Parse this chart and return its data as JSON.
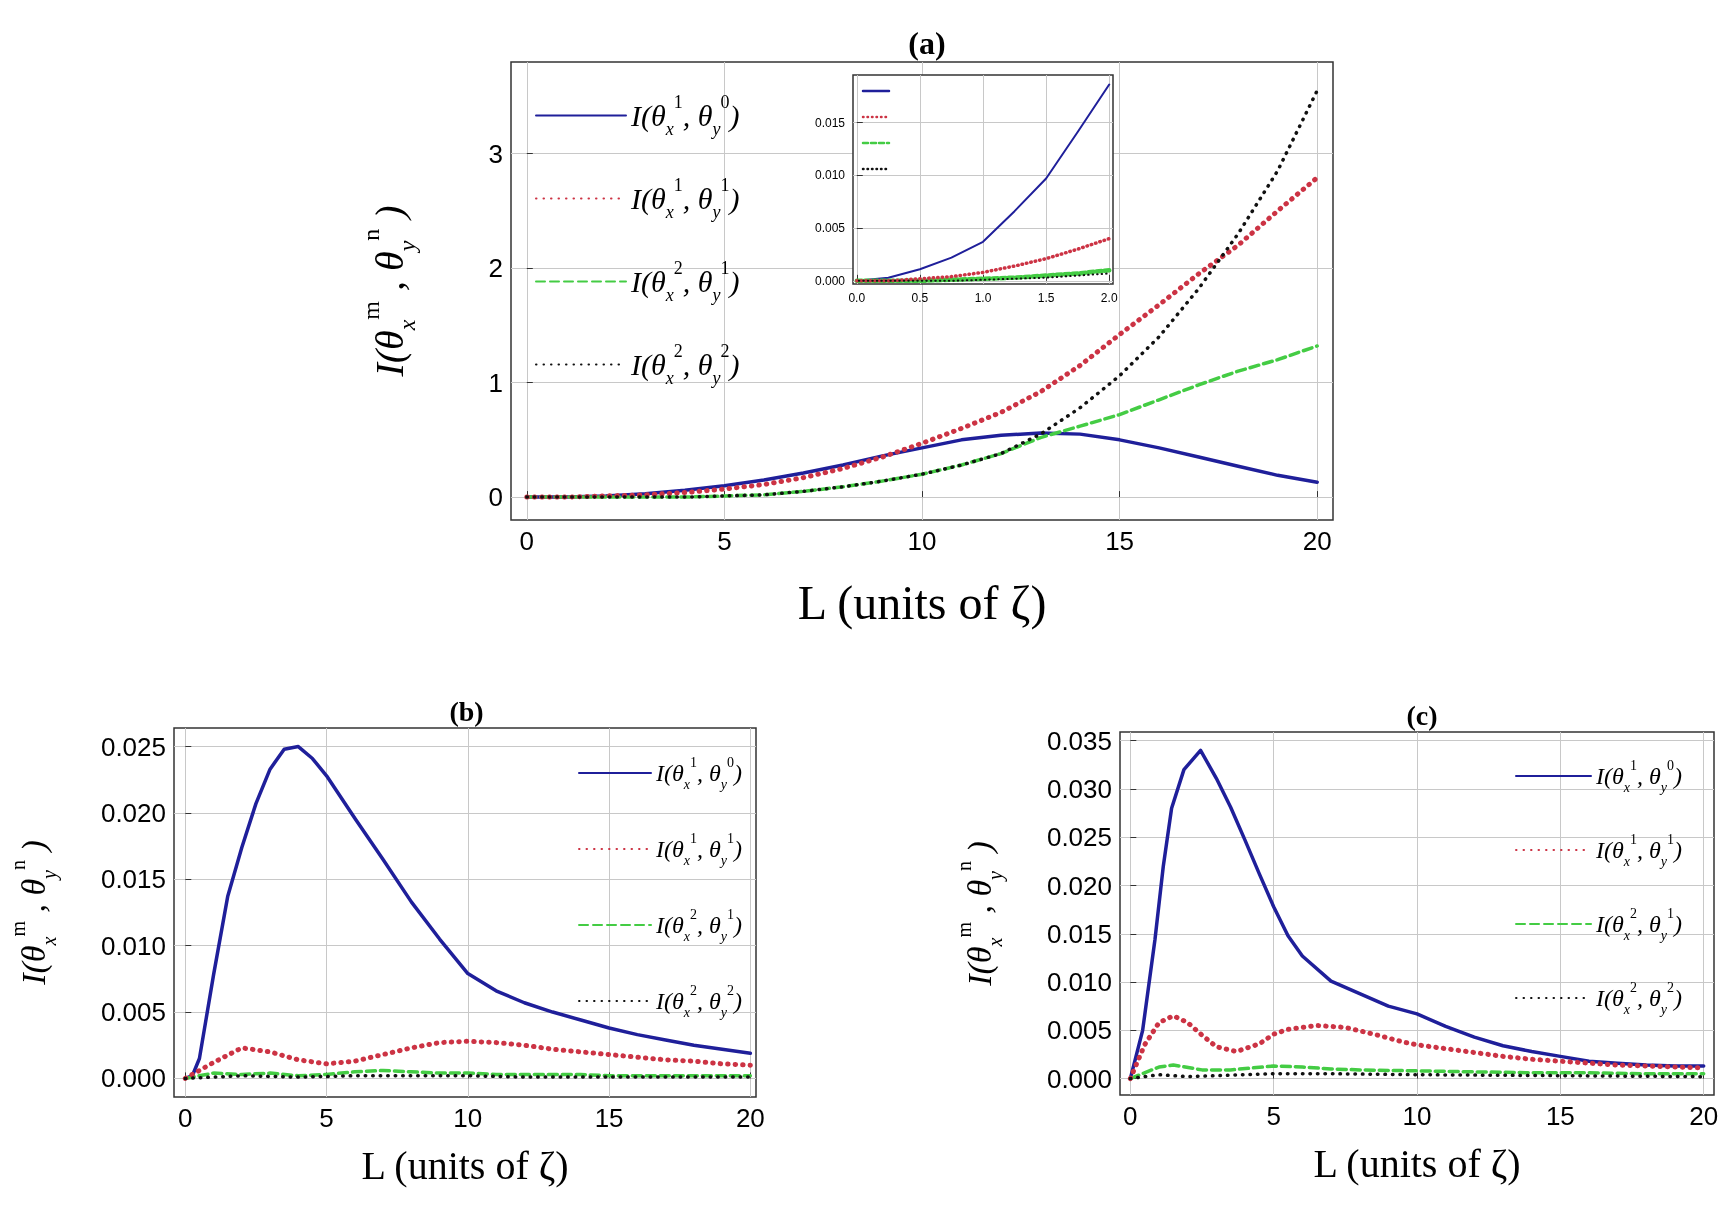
{
  "chart_data": [
    {
      "type": "line",
      "title": "(a)",
      "xlabel": "L (units of ζ)",
      "ylabel": "I(θ$_{x}$$^{m}$ , θ$_{y}$$^{n}$ )",
      "xlim": [
        -0.4,
        20.4
      ],
      "ylim": [
        -0.2,
        3.8
      ],
      "xticks": [
        0,
        5,
        10,
        15,
        20
      ],
      "yticks": [
        0,
        1,
        2,
        3
      ],
      "grid": true,
      "legend": "top left",
      "marker": "none",
      "series": [
        {
          "name": "I(θ$_{x}$$^{1}$, θ$_{y}$$^{0}$)",
          "color": "#1f1f9a",
          "line_style": "solid",
          "x": [
            0,
            1,
            2,
            3,
            4,
            5,
            6,
            7,
            8,
            9,
            10,
            11,
            12,
            13,
            14,
            15,
            16,
            17,
            18,
            19,
            20
          ],
          "values": [
            0,
            0,
            0.01,
            0.03,
            0.06,
            0.1,
            0.15,
            0.21,
            0.28,
            0.36,
            0.43,
            0.5,
            0.54,
            0.56,
            0.55,
            0.5,
            0.43,
            0.35,
            0.27,
            0.19,
            0.13
          ]
        },
        {
          "name": "I(θ$_{x}$$^{1}$, θ$_{y}$$^{1}$)",
          "color": "#cc3344",
          "line_style": "dotted",
          "x": [
            0,
            1,
            2,
            3,
            4,
            5,
            6,
            7,
            8,
            9,
            10,
            11,
            12,
            13,
            14,
            15,
            16,
            17,
            18,
            19,
            20
          ],
          "values": [
            0,
            0,
            0.01,
            0.02,
            0.04,
            0.07,
            0.11,
            0.17,
            0.25,
            0.35,
            0.47,
            0.6,
            0.74,
            0.92,
            1.15,
            1.42,
            1.68,
            1.95,
            2.2,
            2.5,
            2.79
          ]
        },
        {
          "name": "I(θ$_{x}$$^{2}$, θ$_{y}$$^{1}$)",
          "color": "#44cc44",
          "line_style": "dashed",
          "x": [
            0,
            1,
            2,
            3,
            4,
            5,
            6,
            7,
            8,
            9,
            10,
            11,
            12,
            13,
            14,
            15,
            16,
            17,
            18,
            19,
            20
          ],
          "values": [
            0,
            0,
            0,
            0,
            0,
            0.01,
            0.02,
            0.05,
            0.09,
            0.14,
            0.2,
            0.28,
            0.38,
            0.52,
            0.62,
            0.72,
            0.85,
            0.98,
            1.1,
            1.2,
            1.32
          ]
        },
        {
          "name": "I(θ$_{x}$$^{2}$, θ$_{y}$$^{2}$)",
          "color": "#111111",
          "line_style": "dotted",
          "x": [
            0,
            1,
            2,
            3,
            4,
            5,
            6,
            7,
            8,
            9,
            10,
            11,
            12,
            13,
            14,
            15,
            16,
            17,
            18,
            19,
            20
          ],
          "values": [
            0,
            0,
            0,
            0,
            0,
            0.01,
            0.02,
            0.05,
            0.09,
            0.14,
            0.2,
            0.28,
            0.38,
            0.55,
            0.78,
            1.06,
            1.4,
            1.82,
            2.3,
            2.85,
            3.55
          ]
        }
      ]
    },
    {
      "type": "line",
      "xlim": [
        -0.03,
        2.03
      ],
      "ylim": [
        -0.0003,
        0.0195
      ],
      "xticks": [
        {
          "value": 0,
          "label": "0.0"
        },
        {
          "value": 0.5,
          "label": "0.5"
        },
        {
          "value": 1,
          "label": "1.0"
        },
        {
          "value": 1.5,
          "label": "1.5"
        },
        {
          "value": 2,
          "label": "2.0"
        }
      ],
      "yticks": [
        {
          "value": 0,
          "label": "0.000"
        },
        {
          "value": 0.005,
          "label": "0.005"
        },
        {
          "value": 0.01,
          "label": "0.010"
        },
        {
          "value": 0.015,
          "label": "0.015"
        }
      ],
      "grid": true,
      "legend": "top left",
      "marker": "none",
      "series": [
        {
          "color": "#1f1f9a",
          "line_style": "solid",
          "x": [
            0,
            0.25,
            0.5,
            0.75,
            1,
            1.25,
            1.5,
            1.75,
            2
          ],
          "values": [
            0,
            0.0003,
            0.0011,
            0.0022,
            0.0037,
            0.0066,
            0.0097,
            0.0141,
            0.0186
          ]
        },
        {
          "color": "#cc3344",
          "line_style": "dotted",
          "x": [
            0,
            0.25,
            0.5,
            0.75,
            1,
            1.25,
            1.5,
            1.75,
            2
          ],
          "values": [
            0,
            0,
            0.0002,
            0.0004,
            0.0008,
            0.0014,
            0.0021,
            0.003,
            0.004
          ]
        },
        {
          "color": "#44cc44",
          "line_style": "dashed",
          "x": [
            0,
            0.25,
            0.5,
            0.75,
            1,
            1.25,
            1.5,
            1.75,
            2
          ],
          "values": [
            0,
            0,
            0,
            0.0001,
            0.0002,
            0.0003,
            0.0005,
            0.0007,
            0.001
          ]
        },
        {
          "color": "#111111",
          "line_style": "dotted",
          "x": [
            0,
            0.25,
            0.5,
            0.75,
            1,
            1.25,
            1.5,
            1.75,
            2
          ],
          "values": [
            0,
            0,
            0,
            0,
            0.0001,
            0.0002,
            0.0003,
            0.0005,
            0.0007
          ]
        }
      ]
    },
    {
      "type": "line",
      "title": "(b)",
      "xlabel": "L (units of ζ)",
      "ylabel": "I(θ$_{x}$$^{m}$ , θ$_{y}$$^{n}$ )",
      "xlim": [
        -0.4,
        20.2
      ],
      "ylim": [
        -0.0014,
        0.0264
      ],
      "xticks": [
        0,
        5,
        10,
        15,
        20
      ],
      "yticks": [
        {
          "value": 0,
          "label": "0.000"
        },
        {
          "value": 0.005,
          "label": "0.005"
        },
        {
          "value": 0.01,
          "label": "0.010"
        },
        {
          "value": 0.015,
          "label": "0.015"
        },
        {
          "value": 0.02,
          "label": "0.020"
        },
        {
          "value": 0.025,
          "label": "0.025"
        }
      ],
      "grid": true,
      "legend": "top right",
      "marker": "none",
      "series": [
        {
          "name": "I(θ$_{x}$$^{1}$, θ$_{y}$$^{0}$)",
          "color": "#1f1f9a",
          "line_style": "solid",
          "x": [
            0,
            0.25,
            0.5,
            1,
            1.5,
            2,
            2.5,
            3,
            3.5,
            4,
            4.5,
            5,
            6,
            7,
            8,
            9,
            10,
            11,
            12,
            13,
            14,
            15,
            16,
            17,
            18,
            19,
            20
          ],
          "values": [
            0,
            0.0002,
            0.0015,
            0.0078,
            0.0137,
            0.0174,
            0.0207,
            0.0233,
            0.0248,
            0.025,
            0.0241,
            0.0228,
            0.0196,
            0.0165,
            0.0133,
            0.0105,
            0.0079,
            0.0066,
            0.0057,
            0.005,
            0.0044,
            0.0038,
            0.0033,
            0.0029,
            0.0025,
            0.0022,
            0.0019
          ]
        },
        {
          "name": "I(θ$_{x}$$^{1}$, θ$_{y}$$^{1}$)",
          "color": "#cc3344",
          "line_style": "dotted",
          "x": [
            0,
            1,
            2,
            3,
            4,
            5,
            6,
            7,
            8,
            9,
            10,
            11,
            12,
            13,
            14,
            15,
            16,
            17,
            18,
            19,
            20
          ],
          "values": [
            0,
            0.0012,
            0.0023,
            0.002,
            0.0014,
            0.0011,
            0.0013,
            0.0018,
            0.0023,
            0.0027,
            0.0028,
            0.0027,
            0.0025,
            0.0022,
            0.002,
            0.0018,
            0.0016,
            0.0014,
            0.0013,
            0.0011,
            0.001
          ]
        },
        {
          "name": "I(θ$_{x}$$^{2}$, θ$_{y}$$^{1}$)",
          "color": "#44cc44",
          "line_style": "dashed",
          "x": [
            0,
            1,
            2,
            3,
            4,
            5,
            6,
            7,
            8,
            9,
            10,
            11,
            12,
            13,
            14,
            15,
            16,
            17,
            18,
            19,
            20
          ],
          "values": [
            0,
            0.0004,
            0.0003,
            0.0004,
            0.0002,
            0.0003,
            0.0005,
            0.0006,
            0.0005,
            0.0004,
            0.0004,
            0.0003,
            0.0003,
            0.0003,
            0.0003,
            0.0002,
            0.0002,
            0.0002,
            0.0002,
            0.0002,
            0.0002
          ]
        },
        {
          "name": "I(θ$_{x}$$^{2}$, θ$_{y}$$^{2}$)",
          "color": "#111111",
          "line_style": "dotted",
          "x": [
            0,
            1,
            2,
            4,
            6,
            8,
            10,
            12,
            14,
            16,
            18,
            20
          ],
          "values": [
            0,
            0.0001,
            0.0002,
            0.0001,
            0.0002,
            0.0002,
            0.0002,
            0.0001,
            0.0001,
            0.0001,
            0.0001,
            0.0001
          ]
        }
      ]
    },
    {
      "type": "line",
      "title": "(c)",
      "xlabel": "L (units of ζ)",
      "ylabel": "I(θ$_{x}$$^{m}$ , θ$_{y}$$^{n}$ )",
      "xlim": [
        -0.36,
        20.36
      ],
      "ylim": [
        -0.0017,
        0.0359
      ],
      "xticks": [
        0,
        5,
        10,
        15,
        20
      ],
      "yticks": [
        {
          "value": 0,
          "label": "0.000"
        },
        {
          "value": 0.005,
          "label": "0.005"
        },
        {
          "value": 0.01,
          "label": "0.010"
        },
        {
          "value": 0.015,
          "label": "0.015"
        },
        {
          "value": 0.02,
          "label": "0.020"
        },
        {
          "value": 0.025,
          "label": "0.025"
        },
        {
          "value": 0.03,
          "label": "0.030"
        },
        {
          "value": 0.035,
          "label": "0.035"
        }
      ],
      "grid": true,
      "legend": "top right",
      "marker": "none",
      "series": [
        {
          "name": "I(θ$_{x}$$^{1}$, θ$_{y}$$^{0}$)",
          "color": "#1f1f9a",
          "line_style": "solid",
          "x": [
            0,
            0.43,
            0.86,
            1.15,
            1.44,
            1.87,
            2.45,
            3,
            3.5,
            4,
            4.5,
            5,
            5.5,
            6,
            7,
            8,
            9,
            10,
            11,
            12,
            13,
            14,
            15,
            16,
            17,
            18,
            19,
            20
          ],
          "values": [
            0,
            0.005,
            0.0144,
            0.022,
            0.028,
            0.032,
            0.034,
            0.0311,
            0.0281,
            0.0247,
            0.0212,
            0.0178,
            0.0148,
            0.0127,
            0.0101,
            0.0088,
            0.0075,
            0.0067,
            0.0054,
            0.0043,
            0.0034,
            0.0028,
            0.0023,
            0.0018,
            0.0016,
            0.0014,
            0.0013,
            0.0013
          ]
        },
        {
          "name": "I(θ$_{x}$$^{1}$, θ$_{y}$$^{1}$)",
          "color": "#cc3344",
          "line_style": "dotted",
          "x": [
            0,
            0.5,
            1,
            1.5,
            2,
            2.5,
            3,
            3.7,
            4.5,
            5,
            5.5,
            6.5,
            7.5,
            8.5,
            9.5,
            10,
            11,
            12,
            13,
            14,
            15,
            16,
            17,
            18,
            19,
            20
          ],
          "values": [
            0,
            0.0035,
            0.0058,
            0.0065,
            0.0058,
            0.0045,
            0.0033,
            0.0028,
            0.0036,
            0.0046,
            0.0051,
            0.0055,
            0.0053,
            0.0046,
            0.0038,
            0.0035,
            0.0031,
            0.0027,
            0.0023,
            0.002,
            0.0018,
            0.0016,
            0.0014,
            0.0013,
            0.0012,
            0.0011
          ]
        },
        {
          "name": "I(θ$_{x}$$^{2}$, θ$_{y}$$^{1}$)",
          "color": "#44cc44",
          "line_style": "dashed",
          "x": [
            0,
            1,
            1.5,
            2.5,
            3.5,
            5,
            6,
            7,
            8,
            10,
            12,
            14,
            16,
            18,
            20
          ],
          "values": [
            0,
            0.0012,
            0.0014,
            0.0009,
            0.0009,
            0.0013,
            0.0012,
            0.001,
            0.0009,
            0.0008,
            0.0007,
            0.0006,
            0.0006,
            0.0005,
            0.0005
          ]
        },
        {
          "name": "I(θ$_{x}$$^{2}$, θ$_{y}$$^{2}$)",
          "color": "#111111",
          "line_style": "dotted",
          "x": [
            0,
            1,
            2,
            3,
            4,
            5,
            7,
            10,
            15,
            20
          ],
          "values": [
            0,
            0.0004,
            0.0002,
            0.0003,
            0.0004,
            0.0005,
            0.0005,
            0.0004,
            0.0003,
            0.0002
          ]
        }
      ]
    }
  ]
}
